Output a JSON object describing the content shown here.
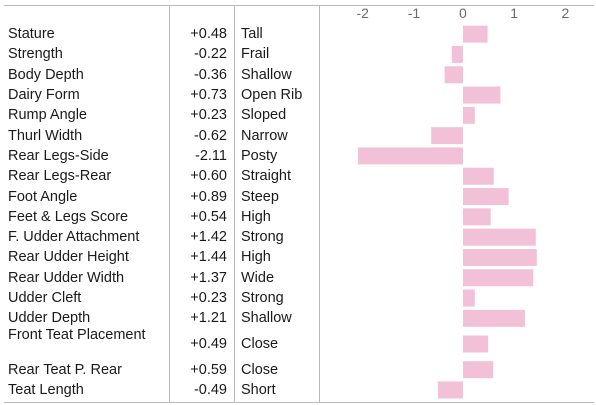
{
  "chart_data": {
    "type": "bar",
    "orientation": "horizontal",
    "xlim": [
      -2,
      2
    ],
    "x_ticks": [
      "-2",
      "-1",
      "0",
      "1",
      "2"
    ],
    "bar_color": "#f2c1d7",
    "rows": [
      {
        "trait": "Stature",
        "value": 0.48,
        "value_label": "+0.48",
        "descriptor": "Tall"
      },
      {
        "trait": "Strength",
        "value": -0.22,
        "value_label": "-0.22",
        "descriptor": "Frail"
      },
      {
        "trait": "Body Depth",
        "value": -0.36,
        "value_label": "-0.36",
        "descriptor": "Shallow"
      },
      {
        "trait": "Dairy Form",
        "value": 0.73,
        "value_label": "+0.73",
        "descriptor": "Open Rib"
      },
      {
        "trait": "Rump Angle",
        "value": 0.23,
        "value_label": "+0.23",
        "descriptor": "Sloped"
      },
      {
        "trait": "Thurl Width",
        "value": -0.62,
        "value_label": "-0.62",
        "descriptor": "Narrow"
      },
      {
        "trait": "Rear Legs-Side",
        "value": -2.11,
        "value_label": "-2.11",
        "descriptor": "Posty"
      },
      {
        "trait": "Rear Legs-Rear",
        "value": 0.6,
        "value_label": "+0.60",
        "descriptor": "Straight"
      },
      {
        "trait": "Foot Angle",
        "value": 0.89,
        "value_label": "+0.89",
        "descriptor": "Steep"
      },
      {
        "trait": "Feet & Legs Score",
        "value": 0.54,
        "value_label": "+0.54",
        "descriptor": "High"
      },
      {
        "trait": "F. Udder Attachment",
        "value": 1.42,
        "value_label": "+1.42",
        "descriptor": "Strong"
      },
      {
        "trait": "Rear Udder Height",
        "value": 1.44,
        "value_label": "+1.44",
        "descriptor": "High"
      },
      {
        "trait": "Rear Udder Width",
        "value": 1.37,
        "value_label": "+1.37",
        "descriptor": "Wide"
      },
      {
        "trait": "Udder Cleft",
        "value": 0.23,
        "value_label": "+0.23",
        "descriptor": "Strong"
      },
      {
        "trait": "Udder Depth",
        "value": 1.21,
        "value_label": "+1.21",
        "descriptor": "Shallow"
      },
      {
        "trait": "Front Teat Placement",
        "value": 0.49,
        "value_label": "+0.49",
        "descriptor": "Close"
      },
      {
        "trait": "Rear Teat P. Rear",
        "value": 0.59,
        "value_label": "+0.59",
        "descriptor": "Close"
      },
      {
        "trait": "Teat Length",
        "value": -0.49,
        "value_label": "-0.49",
        "descriptor": "Short"
      }
    ]
  }
}
